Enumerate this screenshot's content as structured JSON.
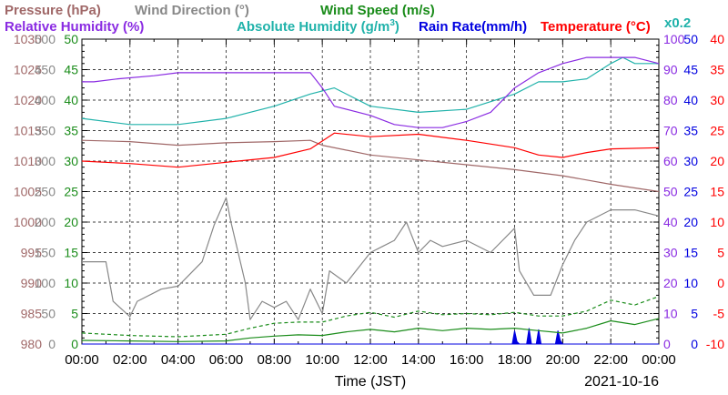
{
  "legend": {
    "pressure": {
      "label": "Pressure (hPa)",
      "color": "#a06868"
    },
    "wind_direction": {
      "label": "Wind Direction (°)",
      "color": "#888888"
    },
    "wind_speed": {
      "label": "Wind Speed (m/s)",
      "color": "#1a8c1a"
    },
    "relative_humidity": {
      "label": "Relative Humidity (%)",
      "color": "#8a2be2"
    },
    "absolute_humidity": {
      "label": "Absolute Humidity (g/m",
      "sup": "3",
      "close": ")",
      "color": "#20b2aa"
    },
    "rain_rate": {
      "label": "Rain Rate(mm/h)",
      "color": "#0000e0"
    },
    "temperature": {
      "label": "Temperature (°C)",
      "color": "#ff0000"
    },
    "scale_note": {
      "label": "x0.2",
      "color": "#20b2aa"
    }
  },
  "axes": {
    "pressure": {
      "ticks": [
        "1030",
        "1025",
        "1020",
        "1015",
        "1010",
        "1005",
        "1000",
        "995",
        "990",
        "985",
        "980"
      ],
      "color": "#a06868"
    },
    "wind_direction": {
      "ticks": [
        "500",
        "450",
        "400",
        "350",
        "300",
        "250",
        "200",
        "150",
        "100",
        "50",
        "0"
      ],
      "color": "#888888"
    },
    "wind_speed": {
      "ticks": [
        "50",
        "45",
        "40",
        "35",
        "30",
        "25",
        "20",
        "15",
        "10",
        "5",
        "0"
      ],
      "color": "#1a8c1a"
    },
    "relative_humidity": {
      "ticks": [
        "100",
        "90",
        "80",
        "70",
        "60",
        "50",
        "40",
        "30",
        "20",
        "10",
        "0"
      ],
      "color": "#8a2be2"
    },
    "rain_rate": {
      "ticks": [
        "50",
        "45",
        "40",
        "35",
        "30",
        "25",
        "20",
        "15",
        "10",
        "5",
        "0"
      ],
      "color": "#0000e0"
    },
    "temperature": {
      "ticks": [
        "40",
        "35",
        "30",
        "25",
        "20",
        "15",
        "10",
        "5",
        "0",
        "-5",
        "-10"
      ],
      "color": "#ff0000"
    },
    "x_ticks": [
      "00:00",
      "02:00",
      "04:00",
      "06:00",
      "08:00",
      "10:00",
      "12:00",
      "14:00",
      "16:00",
      "18:00",
      "20:00",
      "22:00",
      "00:00"
    ],
    "x_label": "Time (JST)",
    "date": "2021-10-16"
  },
  "chart_data": {
    "type": "line",
    "x_unit": "hours",
    "xlim": [
      0,
      24
    ],
    "grid": true,
    "series": [
      {
        "name": "Pressure (hPa)",
        "axis": "pressure",
        "ylim": [
          980,
          1030
        ],
        "style": "solid",
        "color": "#a06868",
        "x": [
          0,
          2,
          4,
          6,
          8,
          9.5,
          10,
          12,
          14,
          16,
          18,
          20,
          22,
          24
        ],
        "y": [
          1013.4,
          1013.2,
          1012.6,
          1013.0,
          1013.2,
          1013.4,
          1012.6,
          1011.0,
          1010.2,
          1009.4,
          1008.6,
          1007.6,
          1006.2,
          1005.0
        ]
      },
      {
        "name": "Relative Humidity (%)",
        "axis": "relative_humidity",
        "ylim": [
          0,
          100
        ],
        "style": "solid",
        "color": "#8a2be2",
        "x": [
          0,
          0.5,
          1.5,
          3,
          4,
          6,
          8,
          9.5,
          10,
          10.5,
          12,
          13,
          14,
          15,
          16,
          17,
          18,
          19,
          20,
          21,
          22,
          23,
          24
        ],
        "y": [
          86,
          86,
          87,
          88,
          89,
          89,
          89,
          89,
          84,
          78,
          75,
          72,
          71,
          71,
          73,
          76,
          84,
          89,
          92,
          94,
          94,
          94,
          92
        ]
      },
      {
        "name": "Absolute Humidity (g/m3) x0.2",
        "axis": "relative_humidity",
        "ylim": [
          0,
          100
        ],
        "style": "solid",
        "color": "#20b2aa",
        "x": [
          0,
          2,
          4,
          6,
          8,
          9.5,
          10.5,
          12,
          14,
          16,
          18,
          19,
          20,
          21,
          22,
          22.5,
          23,
          24
        ],
        "y": [
          74,
          72,
          72,
          74,
          78,
          82,
          84,
          78,
          76,
          77,
          82,
          86,
          86,
          87,
          92,
          94,
          92,
          92
        ]
      },
      {
        "name": "Temperature (°C)",
        "axis": "temperature",
        "ylim": [
          -10,
          40
        ],
        "style": "solid",
        "color": "#ff0000",
        "x": [
          0,
          2,
          4,
          6,
          8,
          9.5,
          10.5,
          12,
          14,
          16,
          18,
          19,
          20,
          21,
          22,
          24
        ],
        "y": [
          20,
          19.6,
          19,
          19.8,
          20.6,
          22,
          24.6,
          24.0,
          24.4,
          23.4,
          22.2,
          21.0,
          20.6,
          21.4,
          22.0,
          22.2
        ]
      },
      {
        "name": "Wind Direction (°)",
        "axis": "wind_direction",
        "ylim": [
          0,
          500
        ],
        "style": "solid",
        "color": "#888888",
        "x": [
          0,
          1,
          1.3,
          2,
          2.3,
          3.3,
          4,
          5,
          5.5,
          6,
          6.2,
          6.8,
          7,
          7.5,
          8,
          8.5,
          9,
          9.5,
          10,
          10.3,
          11,
          12,
          12.5,
          13,
          13.5,
          14,
          14.5,
          15,
          16,
          17,
          18,
          18.2,
          18.8,
          19.5,
          20,
          20.5,
          21,
          22,
          23,
          24
        ],
        "y": [
          135,
          135,
          70,
          45,
          70,
          90,
          95,
          135,
          195,
          240,
          200,
          100,
          40,
          70,
          60,
          70,
          40,
          90,
          50,
          120,
          100,
          150,
          160,
          170,
          200,
          150,
          170,
          160,
          170,
          150,
          190,
          120,
          80,
          80,
          130,
          170,
          200,
          220,
          220,
          210
        ]
      },
      {
        "name": "Wind Speed (m/s)",
        "axis": "wind_speed",
        "ylim": [
          0,
          50
        ],
        "style": "solid",
        "color": "#1a8c1a",
        "x": [
          0,
          2,
          4,
          6,
          7,
          8,
          9,
          10,
          11,
          12,
          13,
          14,
          15,
          16,
          17,
          18,
          19,
          20,
          21,
          22,
          23,
          24
        ],
        "y": [
          0.6,
          0.5,
          0.4,
          0.5,
          1.0,
          1.3,
          1.5,
          1.4,
          2.0,
          2.4,
          2.0,
          2.6,
          2.2,
          2.6,
          2.4,
          2.6,
          2.2,
          1.8,
          2.6,
          3.8,
          3.2,
          4.2
        ]
      },
      {
        "name": "Wind Speed gust (m/s)",
        "axis": "wind_speed",
        "ylim": [
          0,
          50
        ],
        "style": "dashed",
        "color": "#1a8c1a",
        "x": [
          0,
          2,
          4,
          6,
          7,
          8,
          9,
          10,
          11,
          12,
          13,
          14,
          15,
          16,
          17,
          18,
          19,
          20,
          21,
          22,
          23,
          24
        ],
        "y": [
          1.8,
          1.4,
          1.2,
          1.6,
          2.6,
          3.4,
          3.6,
          3.6,
          4.6,
          5.2,
          4.4,
          5.4,
          4.8,
          5.0,
          4.8,
          5.2,
          4.6,
          4.6,
          5.4,
          7.2,
          6.4,
          7.8
        ]
      },
      {
        "name": "Rain Rate (mm/h)",
        "axis": "rain_rate",
        "ylim": [
          0,
          50
        ],
        "style": "area",
        "color": "#0000e0",
        "x": [
          0,
          17.9,
          18.0,
          18.1,
          18.2,
          18.5,
          18.6,
          18.7,
          18.9,
          19.0,
          19.1,
          19.2,
          19.7,
          19.8,
          19.9,
          20.0,
          24
        ],
        "y": [
          0,
          0,
          2.2,
          0.4,
          0,
          0,
          2.6,
          0,
          0,
          2.4,
          0,
          0,
          0,
          2.2,
          0.6,
          0,
          0
        ]
      }
    ]
  }
}
